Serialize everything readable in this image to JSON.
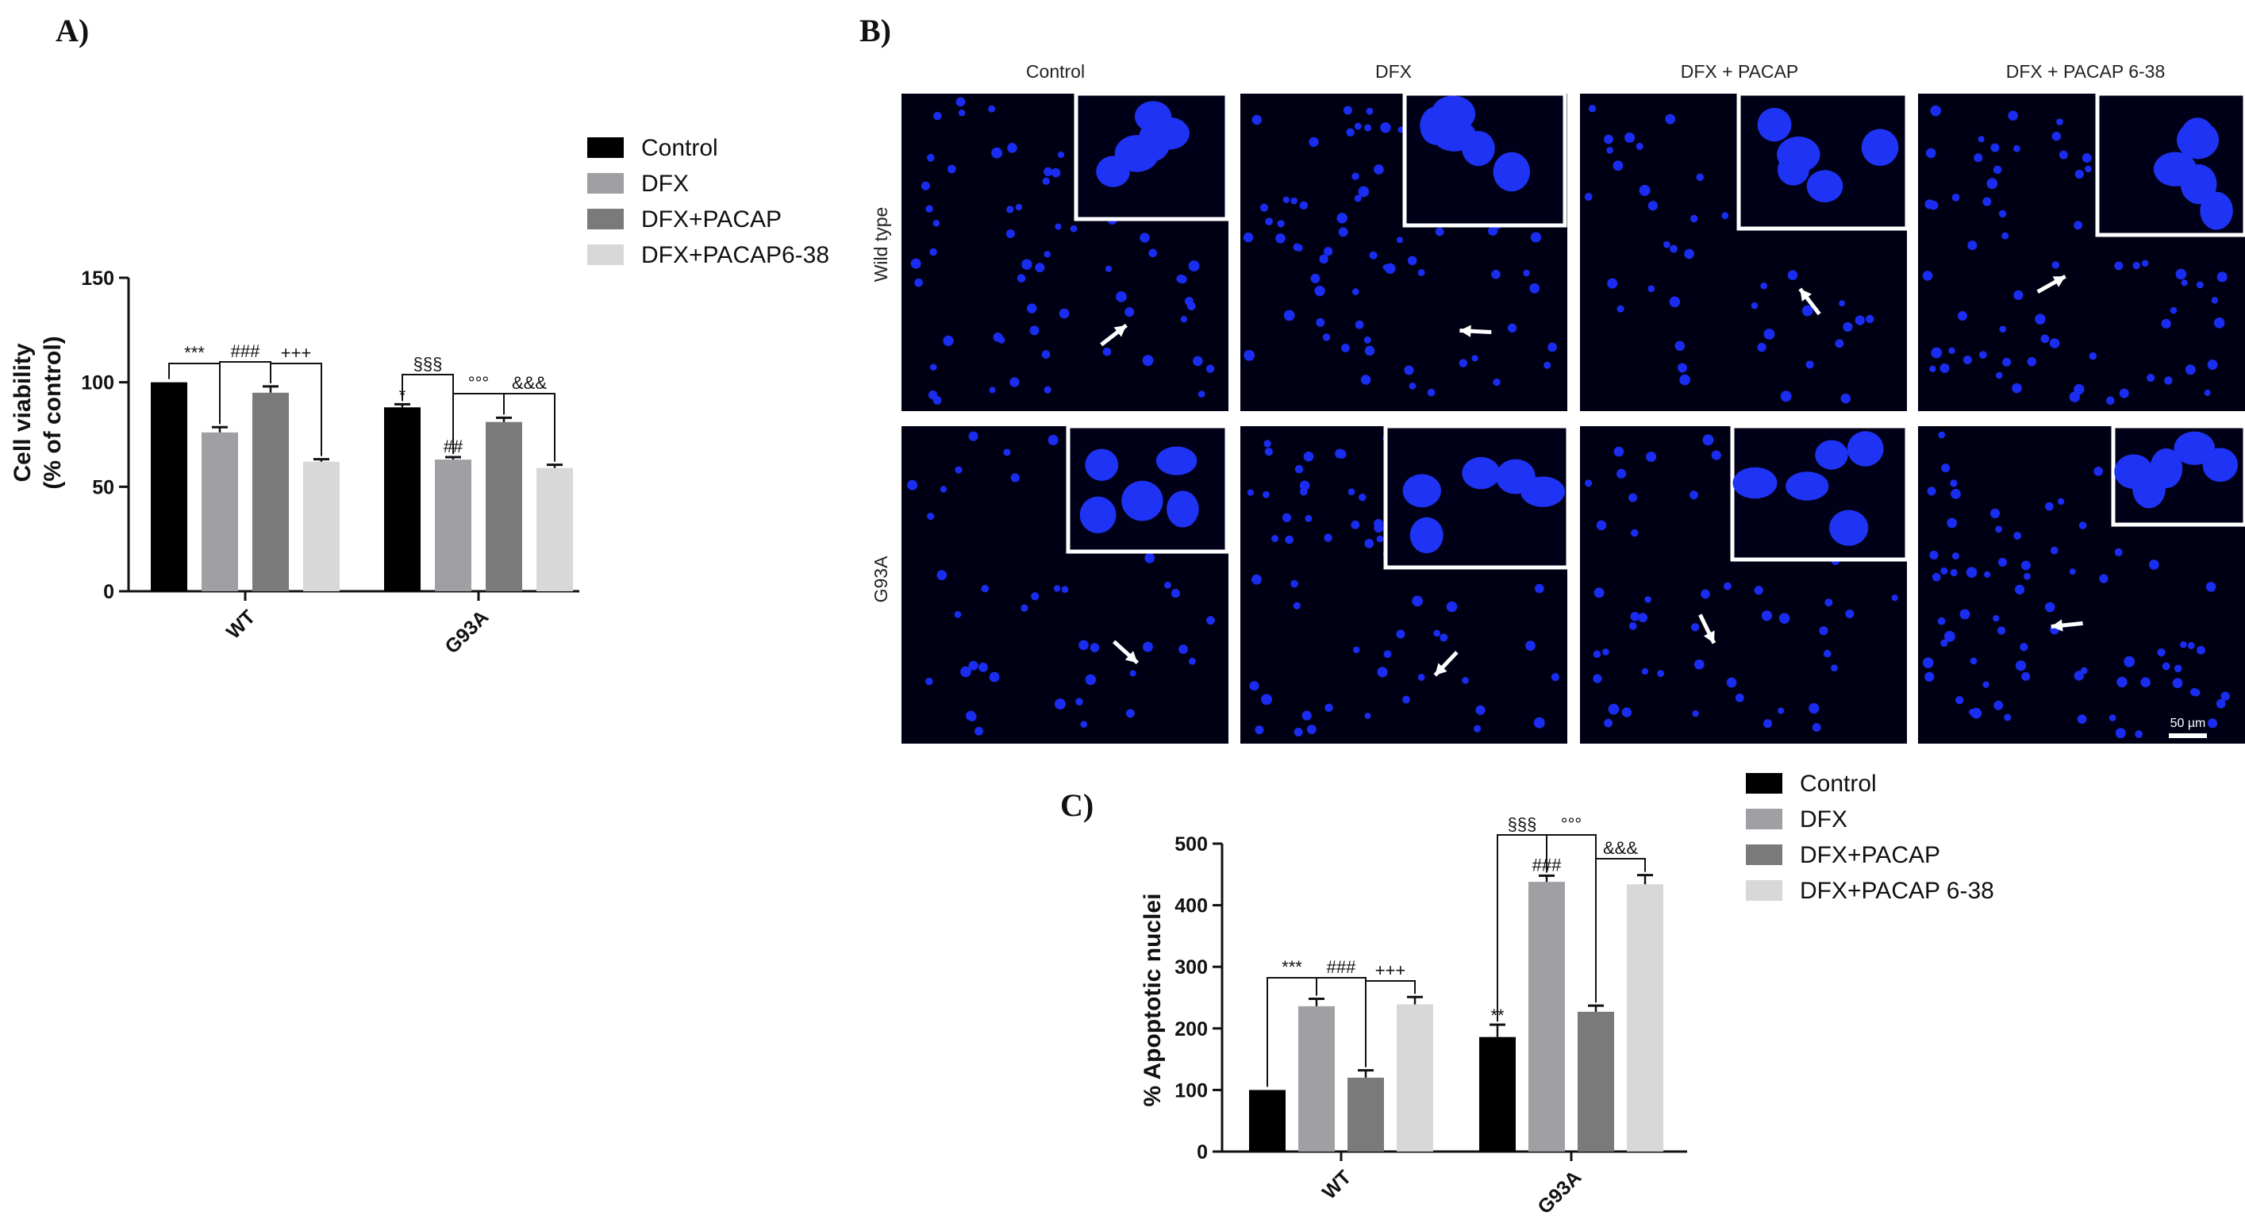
{
  "chart_data": [
    {
      "type": "bar",
      "panel_label": "A)",
      "ylabel": "Cell viability",
      "ylabel2": "(% of control)",
      "ylim": [
        0,
        150
      ],
      "yticks": [
        "0",
        "50",
        "100",
        "150"
      ],
      "categories": [
        "WT",
        "G93A"
      ],
      "series": [
        {
          "name": "Control",
          "color": "#000000",
          "values": [
            100,
            88
          ],
          "errors": [
            0,
            1.5
          ]
        },
        {
          "name": "DFX",
          "color": "#a0a0a4",
          "values": [
            76,
            63
          ],
          "errors": [
            2.5,
            1.2
          ]
        },
        {
          "name": "DFX+PACAP",
          "color": "#7a7a7a",
          "values": [
            95,
            81
          ],
          "errors": [
            3,
            2
          ]
        },
        {
          "name": "DFX+PACAP6-38",
          "color": "#d8d8d8",
          "values": [
            62,
            59
          ],
          "errors": [
            1.2,
            1.5
          ]
        }
      ],
      "legend": [
        "Control",
        "DFX",
        "DFX+PACAP",
        "DFX+PACAP6-38"
      ],
      "annotations": {
        "wt_brackets": [
          "***",
          "###",
          "+++"
        ],
        "g93a_brackets": [
          "§§§",
          "°°°",
          "&&&"
        ],
        "g93a_control_star": "*",
        "g93a_dfx_mark": "##"
      }
    },
    {
      "type": "bar",
      "panel_label": "C)",
      "ylabel": "% Apoptotic nuclei",
      "ylim": [
        0,
        500
      ],
      "yticks": [
        "0",
        "100",
        "200",
        "300",
        "400",
        "500"
      ],
      "categories": [
        "WT",
        "G93A"
      ],
      "series": [
        {
          "name": "Control",
          "color": "#000000",
          "values": [
            100,
            186
          ],
          "errors": [
            0,
            20
          ]
        },
        {
          "name": "DFX",
          "color": "#a0a0a4",
          "values": [
            236,
            438
          ],
          "errors": [
            12,
            10
          ]
        },
        {
          "name": "DFX+PACAP",
          "color": "#7a7a7a",
          "values": [
            120,
            227
          ],
          "errors": [
            12,
            10
          ]
        },
        {
          "name": "DFX+PACAP 6-38",
          "color": "#d8d8d8",
          "values": [
            239,
            434
          ],
          "errors": [
            12,
            15
          ]
        }
      ],
      "legend": [
        "Control",
        "DFX",
        "DFX+PACAP",
        "DFX+PACAP 6-38"
      ],
      "annotations": {
        "wt_brackets": [
          "***",
          "###",
          "+++"
        ],
        "g93a_brackets": [
          "§§§",
          "°°°",
          "&&&"
        ],
        "g93a_control_star": "**",
        "g93a_dfx_mark": "###"
      }
    }
  ],
  "microscopy": {
    "panel_label": "B)",
    "columns": [
      "Control",
      "DFX",
      "DFX + PACAP",
      "DFX + PACAP 6-38"
    ],
    "rows": [
      "Wild type",
      "G93A"
    ],
    "scale_bar": "50 µm"
  }
}
